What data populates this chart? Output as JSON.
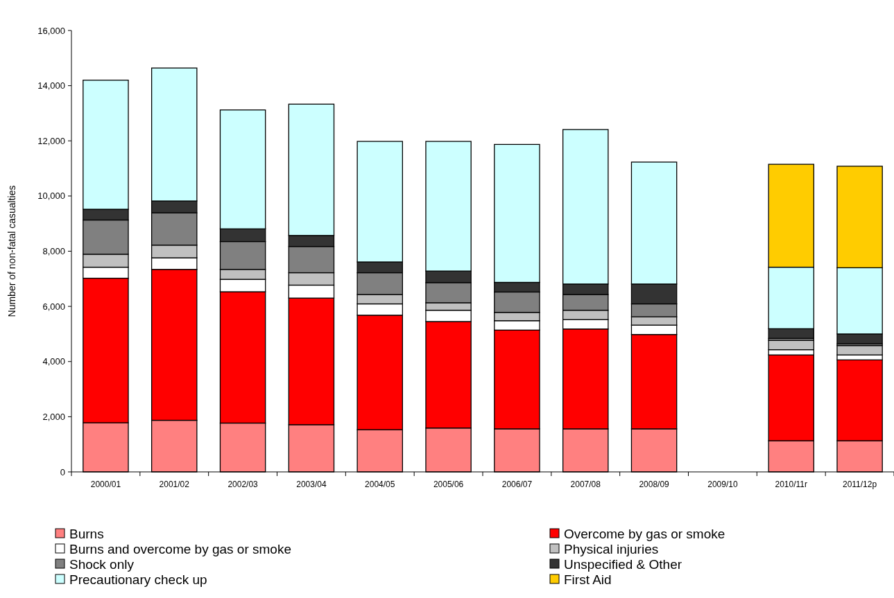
{
  "chart_data": {
    "type": "bar",
    "stacked": true,
    "ylabel": "Number of non-fatal casualties",
    "categories": [
      "2000/01",
      "2001/02",
      "2002/03",
      "2003/04",
      "2004/05",
      "2005/06",
      "2006/07",
      "2007/08",
      "2008/09",
      "2009/10",
      "2010/11r",
      "2011/12p"
    ],
    "series": [
      {
        "name": "Burns",
        "color": "#ff8080",
        "values": [
          1780,
          1870,
          1770,
          1710,
          1530,
          1590,
          1560,
          1560,
          1560,
          null,
          1130,
          1130
        ]
      },
      {
        "name": "Overcome by gas or smoke",
        "color": "#ff0000",
        "values": [
          5240,
          5470,
          4760,
          4590,
          4150,
          3860,
          3580,
          3620,
          3420,
          null,
          3110,
          2930
        ]
      },
      {
        "name": "Burns and overcome by gas or smoke",
        "color": "#ffffff",
        "values": [
          400,
          420,
          450,
          470,
          410,
          410,
          340,
          340,
          340,
          null,
          190,
          180
        ]
      },
      {
        "name": "Physical injuries",
        "color": "#c0c0c0",
        "values": [
          470,
          460,
          360,
          450,
          340,
          270,
          300,
          340,
          300,
          null,
          340,
          340
        ]
      },
      {
        "name": "Shock only",
        "color": "#808080",
        "values": [
          1240,
          1170,
          1010,
          950,
          790,
          730,
          740,
          570,
          470,
          null,
          70,
          60
        ]
      },
      {
        "name": "Unspecified & Other",
        "color": "#333333",
        "values": [
          390,
          430,
          460,
          400,
          390,
          420,
          350,
          380,
          720,
          null,
          350,
          360
        ]
      },
      {
        "name": "Precautionary check up",
        "color": "#ccffff",
        "values": [
          4680,
          4820,
          4310,
          4760,
          4370,
          4700,
          5000,
          5600,
          4420,
          null,
          2230,
          2400
        ]
      },
      {
        "name": "First Aid",
        "color": "#ffcc00",
        "values": [
          null,
          null,
          null,
          null,
          null,
          null,
          null,
          null,
          null,
          null,
          3730,
          3680
        ]
      }
    ],
    "ylim": [
      0,
      16000
    ],
    "yticks": [
      {
        "value": 0,
        "label": "0"
      },
      {
        "value": 2000,
        "label": "2,000"
      },
      {
        "value": 4000,
        "label": "4,000"
      },
      {
        "value": 6000,
        "label": "6,000"
      },
      {
        "value": 8000,
        "label": "8,000"
      },
      {
        "value": 10000,
        "label": "10,000"
      },
      {
        "value": 12000,
        "label": "12,000"
      },
      {
        "value": 14000,
        "label": "14,000"
      },
      {
        "value": 16000,
        "label": "16,000"
      }
    ],
    "grid": false,
    "legend": "bottom"
  }
}
